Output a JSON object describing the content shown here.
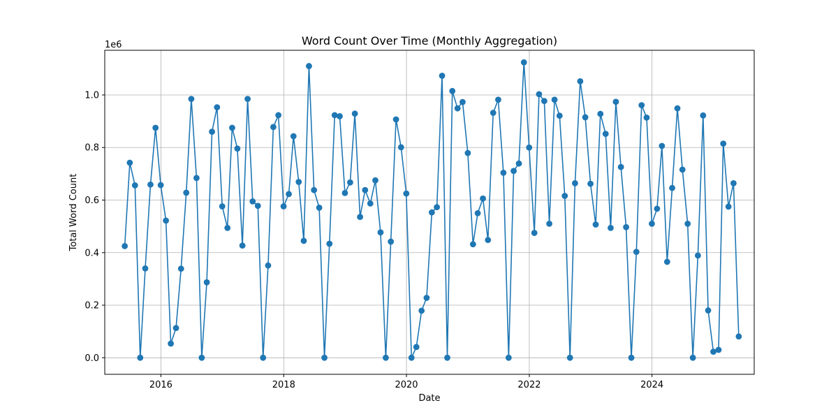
{
  "chart_data": {
    "type": "line",
    "title": "Word Count Over Time (Monthly Aggregation)",
    "xlabel": "Date",
    "ylabel": "Total Word Count",
    "y_scale_label": "1e6",
    "y_scale": 1000000,
    "xlim": [
      "2015-02-01",
      "2025-08-31"
    ],
    "ylim": [
      -0.063,
      1.17
    ],
    "x_ticks": [
      {
        "date": "2016-01-01",
        "label": "2016"
      },
      {
        "date": "2018-01-01",
        "label": "2018"
      },
      {
        "date": "2020-01-01",
        "label": "2020"
      },
      {
        "date": "2022-01-01",
        "label": "2022"
      },
      {
        "date": "2024-01-01",
        "label": "2024"
      }
    ],
    "y_ticks": [
      {
        "value": 0.0,
        "label": "0.0"
      },
      {
        "value": 0.2,
        "label": "0.2"
      },
      {
        "value": 0.4,
        "label": "0.4"
      },
      {
        "value": 0.6,
        "label": "0.6"
      },
      {
        "value": 0.8,
        "label": "0.8"
      },
      {
        "value": 1.0,
        "label": "1.0"
      }
    ],
    "grid": true,
    "series": [
      {
        "color": "#1f77b4",
        "marker": "circle",
        "x": [
          "2015-05-31",
          "2015-06-30",
          "2015-07-31",
          "2015-08-31",
          "2015-09-30",
          "2015-10-31",
          "2015-11-30",
          "2015-12-31",
          "2016-01-31",
          "2016-02-29",
          "2016-03-31",
          "2016-04-30",
          "2016-05-31",
          "2016-06-30",
          "2016-07-31",
          "2016-08-31",
          "2016-09-30",
          "2016-10-31",
          "2016-11-30",
          "2016-12-31",
          "2017-01-31",
          "2017-02-28",
          "2017-03-31",
          "2017-04-30",
          "2017-05-31",
          "2017-06-30",
          "2017-07-31",
          "2017-08-31",
          "2017-09-30",
          "2017-10-31",
          "2017-11-30",
          "2017-12-31",
          "2018-01-31",
          "2018-02-28",
          "2018-03-31",
          "2018-04-30",
          "2018-05-31",
          "2018-06-30",
          "2018-07-31",
          "2018-08-31",
          "2018-09-30",
          "2018-10-31",
          "2018-11-30",
          "2018-12-31",
          "2019-01-31",
          "2019-02-28",
          "2019-03-31",
          "2019-04-30",
          "2019-05-31",
          "2019-06-30",
          "2019-07-31",
          "2019-08-31",
          "2019-09-30",
          "2019-10-31",
          "2019-11-30",
          "2019-12-31",
          "2020-01-31",
          "2020-02-29",
          "2020-03-31",
          "2020-04-30",
          "2020-05-31",
          "2020-06-30",
          "2020-07-31",
          "2020-08-31",
          "2020-09-30",
          "2020-10-31",
          "2020-11-30",
          "2020-12-31",
          "2021-01-31",
          "2021-02-28",
          "2021-03-31",
          "2021-04-30",
          "2021-05-31",
          "2021-06-30",
          "2021-07-31",
          "2021-08-31",
          "2021-09-30",
          "2021-10-31",
          "2021-11-30",
          "2021-12-31",
          "2022-01-31",
          "2022-02-28",
          "2022-03-31",
          "2022-04-30",
          "2022-05-31",
          "2022-06-30",
          "2022-07-31",
          "2022-08-31",
          "2022-09-30",
          "2022-10-31",
          "2022-11-30",
          "2022-12-31",
          "2023-01-31",
          "2023-02-28",
          "2023-03-31",
          "2023-04-30",
          "2023-05-31",
          "2023-06-30",
          "2023-07-31",
          "2023-08-31",
          "2023-09-30",
          "2023-10-31",
          "2023-11-30",
          "2023-12-31",
          "2024-01-31",
          "2024-02-29",
          "2024-03-31",
          "2024-04-30",
          "2024-05-31",
          "2024-06-30",
          "2024-07-31",
          "2024-08-31",
          "2024-09-30",
          "2024-10-31",
          "2024-11-30",
          "2024-12-31",
          "2025-01-31",
          "2025-02-28",
          "2025-03-31",
          "2025-04-30",
          "2025-05-31"
        ],
        "y": [
          0.425,
          0.742,
          0.656,
          0.0,
          0.34,
          0.659,
          0.875,
          0.657,
          0.522,
          0.054,
          0.113,
          0.339,
          0.628,
          0.985,
          0.684,
          0.0,
          0.287,
          0.86,
          0.953,
          0.576,
          0.494,
          0.875,
          0.796,
          0.427,
          0.985,
          0.595,
          0.578,
          0.0,
          0.351,
          0.878,
          0.923,
          0.576,
          0.623,
          0.843,
          0.669,
          0.445,
          1.11,
          0.638,
          0.571,
          0.0,
          0.434,
          0.923,
          0.919,
          0.627,
          0.667,
          0.929,
          0.536,
          0.638,
          0.587,
          0.675,
          0.477,
          0.0,
          0.442,
          0.907,
          0.801,
          0.625,
          0.0,
          0.041,
          0.179,
          0.228,
          0.553,
          0.573,
          1.073,
          0.0,
          1.015,
          0.949,
          0.973,
          0.779,
          0.432,
          0.55,
          0.606,
          0.448,
          0.932,
          0.982,
          0.704,
          0.0,
          0.711,
          0.739,
          1.124,
          0.8,
          0.475,
          1.003,
          0.977,
          0.51,
          0.982,
          0.921,
          0.616,
          0.0,
          0.664,
          1.052,
          0.915,
          0.662,
          0.507,
          0.928,
          0.852,
          0.494,
          0.974,
          0.726,
          0.497,
          0.0,
          0.403,
          0.961,
          0.914,
          0.51,
          0.567,
          0.806,
          0.365,
          0.646,
          0.949,
          0.716,
          0.51,
          0.0,
          0.389,
          0.922,
          0.18,
          0.023,
          0.03,
          0.815,
          0.575,
          0.664,
          0.081
        ]
      }
    ]
  }
}
